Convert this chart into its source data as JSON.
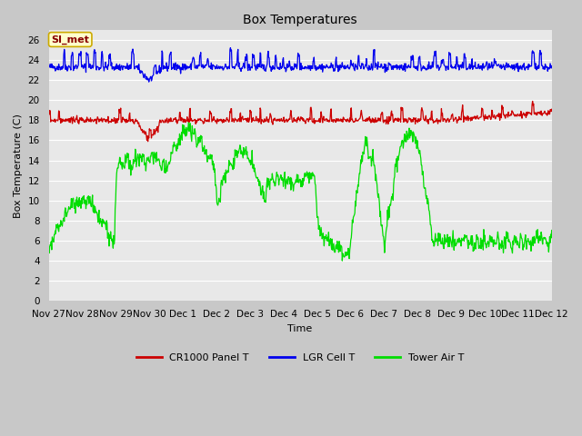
{
  "title": "Box Temperatures",
  "xlabel": "Time",
  "ylabel": "Box Temperature (C)",
  "ylim": [
    0,
    27
  ],
  "yticks": [
    0,
    2,
    4,
    6,
    8,
    10,
    12,
    14,
    16,
    18,
    20,
    22,
    24,
    26
  ],
  "fig_bg_color": "#c8c8c8",
  "plot_bg_color": "#e8e8e8",
  "grid_color": "#ffffff",
  "annotation_text": "SI_met",
  "annotation_bg": "#ffffcc",
  "annotation_border": "#ccaa00",
  "annotation_text_color": "#880000",
  "line_colors": {
    "panel": "#cc0000",
    "cell": "#0000ee",
    "air": "#00dd00"
  },
  "legend_labels": [
    "CR1000 Panel T",
    "LGR Cell T",
    "Tower Air T"
  ],
  "x_tick_labels": [
    "Nov 27",
    "Nov 28",
    "Nov 29",
    "Nov 30",
    "Dec 1",
    "Dec 2",
    "Dec 3",
    "Dec 4",
    "Dec 5",
    "Dec 6",
    "Dec 7",
    "Dec 8",
    "Dec 9",
    "Dec 10",
    "Dec 11",
    "Dec 12"
  ],
  "n_points": 1000
}
